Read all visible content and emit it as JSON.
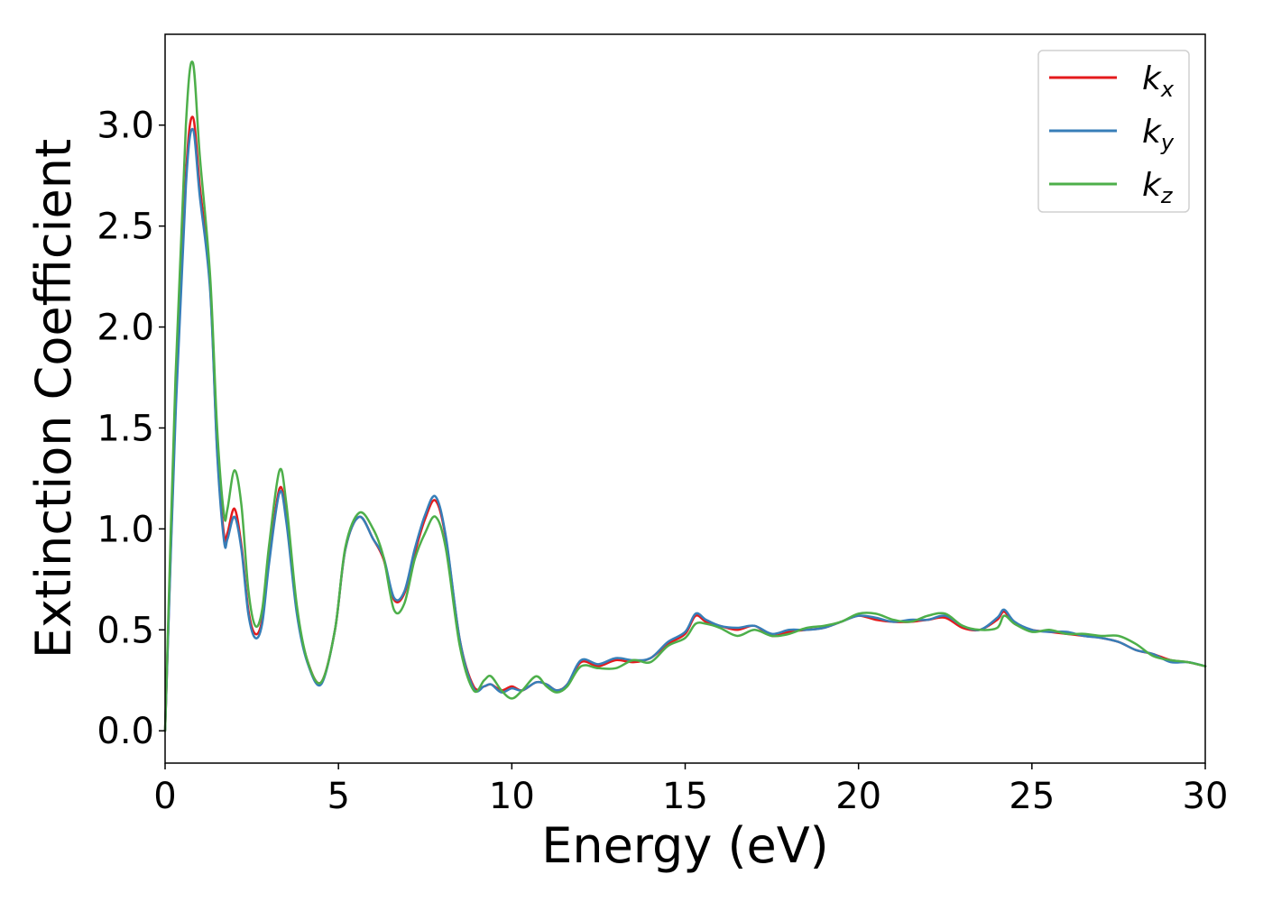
{
  "chart_data": {
    "type": "line",
    "xlabel": "Energy (eV)",
    "ylabel": "Extinction Coefficient",
    "xlim": [
      0,
      30
    ],
    "ylim": [
      -0.16,
      3.45
    ],
    "xticks": [
      "0",
      "5",
      "10",
      "15",
      "20",
      "25",
      "30"
    ],
    "yticks": [
      "0.0",
      "0.5",
      "1.0",
      "1.5",
      "2.0",
      "2.5",
      "3.0"
    ],
    "grid": false,
    "legend_position": "top-right",
    "series": [
      {
        "name": "k_x",
        "label_main": "k",
        "label_sub": "x",
        "color": "#e41a1c",
        "x": [
          0,
          0.3,
          0.6,
          0.8,
          1.0,
          1.3,
          1.5,
          1.7,
          1.8,
          2.0,
          2.2,
          2.4,
          2.6,
          2.8,
          3.0,
          3.3,
          3.5,
          3.8,
          4.1,
          4.5,
          4.9,
          5.2,
          5.6,
          6.0,
          6.3,
          6.6,
          6.9,
          7.2,
          7.5,
          7.8,
          8.1,
          8.5,
          8.9,
          9.2,
          9.4,
          9.7,
          10.0,
          10.3,
          10.7,
          11.0,
          11.3,
          11.6,
          12.0,
          12.5,
          13.0,
          13.5,
          14.0,
          14.5,
          15.0,
          15.3,
          15.6,
          16.0,
          16.5,
          17.0,
          17.5,
          18.0,
          18.5,
          19.0,
          19.5,
          20.0,
          20.5,
          21.0,
          21.5,
          22.0,
          22.5,
          23.0,
          23.5,
          24.0,
          24.2,
          24.5,
          25.0,
          25.5,
          26.0,
          26.5,
          27.0,
          27.5,
          28.0,
          28.5,
          29.0,
          29.5,
          30.0
        ],
        "y": [
          0.0,
          1.6,
          2.75,
          3.04,
          2.7,
          2.2,
          1.4,
          0.97,
          0.98,
          1.1,
          0.92,
          0.6,
          0.48,
          0.55,
          0.85,
          1.2,
          1.05,
          0.6,
          0.35,
          0.24,
          0.5,
          0.9,
          1.06,
          0.95,
          0.85,
          0.65,
          0.68,
          0.88,
          1.05,
          1.14,
          0.95,
          0.45,
          0.22,
          0.22,
          0.23,
          0.2,
          0.22,
          0.2,
          0.24,
          0.23,
          0.2,
          0.23,
          0.34,
          0.32,
          0.35,
          0.34,
          0.36,
          0.43,
          0.48,
          0.57,
          0.54,
          0.52,
          0.5,
          0.52,
          0.47,
          0.49,
          0.5,
          0.51,
          0.54,
          0.57,
          0.55,
          0.54,
          0.54,
          0.55,
          0.56,
          0.51,
          0.5,
          0.55,
          0.59,
          0.53,
          0.5,
          0.49,
          0.48,
          0.47,
          0.46,
          0.44,
          0.4,
          0.38,
          0.35,
          0.34,
          0.32
        ]
      },
      {
        "name": "k_y",
        "label_main": "k",
        "label_sub": "y",
        "color": "#377eb8",
        "x": [
          0,
          0.3,
          0.6,
          0.8,
          1.0,
          1.3,
          1.5,
          1.7,
          1.8,
          2.0,
          2.2,
          2.4,
          2.6,
          2.8,
          3.0,
          3.3,
          3.5,
          3.8,
          4.1,
          4.5,
          4.9,
          5.2,
          5.6,
          6.0,
          6.3,
          6.6,
          6.9,
          7.2,
          7.5,
          7.8,
          8.1,
          8.5,
          8.9,
          9.2,
          9.4,
          9.7,
          10.0,
          10.3,
          10.7,
          11.0,
          11.3,
          11.6,
          12.0,
          12.5,
          13.0,
          13.5,
          14.0,
          14.5,
          15.0,
          15.3,
          15.6,
          16.0,
          16.5,
          17.0,
          17.5,
          18.0,
          18.5,
          19.0,
          19.5,
          20.0,
          20.5,
          21.0,
          21.5,
          22.0,
          22.5,
          23.0,
          23.5,
          24.0,
          24.2,
          24.5,
          25.0,
          25.5,
          26.0,
          26.5,
          27.0,
          27.5,
          28.0,
          28.5,
          29.0,
          29.5,
          30.0
        ],
        "y": [
          0.0,
          1.55,
          2.7,
          2.98,
          2.65,
          2.18,
          1.38,
          0.94,
          0.95,
          1.06,
          0.9,
          0.58,
          0.46,
          0.53,
          0.83,
          1.18,
          1.03,
          0.58,
          0.34,
          0.23,
          0.5,
          0.9,
          1.06,
          0.95,
          0.86,
          0.66,
          0.69,
          0.9,
          1.07,
          1.16,
          0.96,
          0.45,
          0.21,
          0.22,
          0.23,
          0.19,
          0.21,
          0.2,
          0.24,
          0.23,
          0.2,
          0.23,
          0.35,
          0.33,
          0.36,
          0.35,
          0.36,
          0.44,
          0.49,
          0.58,
          0.55,
          0.52,
          0.51,
          0.52,
          0.48,
          0.5,
          0.5,
          0.51,
          0.54,
          0.57,
          0.56,
          0.54,
          0.55,
          0.55,
          0.57,
          0.52,
          0.5,
          0.56,
          0.6,
          0.54,
          0.5,
          0.49,
          0.49,
          0.47,
          0.46,
          0.44,
          0.4,
          0.38,
          0.34,
          0.34,
          0.32
        ]
      },
      {
        "name": "k_z",
        "label_main": "k",
        "label_sub": "z",
        "color": "#4daf4a",
        "x": [
          0,
          0.3,
          0.6,
          0.8,
          1.0,
          1.3,
          1.5,
          1.7,
          1.8,
          2.0,
          2.2,
          2.4,
          2.6,
          2.8,
          3.0,
          3.3,
          3.5,
          3.8,
          4.1,
          4.5,
          4.9,
          5.2,
          5.6,
          6.0,
          6.3,
          6.6,
          6.9,
          7.2,
          7.5,
          7.8,
          8.1,
          8.5,
          8.9,
          9.2,
          9.4,
          9.7,
          10.0,
          10.3,
          10.7,
          11.0,
          11.3,
          11.6,
          12.0,
          12.5,
          13.0,
          13.5,
          14.0,
          14.5,
          15.0,
          15.3,
          15.6,
          16.0,
          16.5,
          17.0,
          17.5,
          18.0,
          18.5,
          19.0,
          19.5,
          20.0,
          20.5,
          21.0,
          21.5,
          22.0,
          22.5,
          23.0,
          23.5,
          24.0,
          24.2,
          24.5,
          25.0,
          25.5,
          26.0,
          26.5,
          27.0,
          27.5,
          28.0,
          28.5,
          29.0,
          29.5,
          30.0
        ],
        "y": [
          0.0,
          1.75,
          3.0,
          3.31,
          2.85,
          2.25,
          1.5,
          1.07,
          1.1,
          1.29,
          1.12,
          0.7,
          0.52,
          0.6,
          0.92,
          1.29,
          1.12,
          0.62,
          0.35,
          0.24,
          0.5,
          0.91,
          1.08,
          1.0,
          0.86,
          0.6,
          0.63,
          0.85,
          0.98,
          1.06,
          0.9,
          0.42,
          0.2,
          0.25,
          0.27,
          0.2,
          0.16,
          0.2,
          0.27,
          0.22,
          0.19,
          0.22,
          0.32,
          0.31,
          0.31,
          0.35,
          0.34,
          0.42,
          0.46,
          0.53,
          0.53,
          0.51,
          0.47,
          0.5,
          0.47,
          0.48,
          0.51,
          0.52,
          0.54,
          0.58,
          0.58,
          0.55,
          0.54,
          0.57,
          0.58,
          0.52,
          0.5,
          0.51,
          0.57,
          0.53,
          0.49,
          0.5,
          0.48,
          0.48,
          0.47,
          0.47,
          0.43,
          0.37,
          0.35,
          0.34,
          0.32
        ]
      }
    ]
  }
}
